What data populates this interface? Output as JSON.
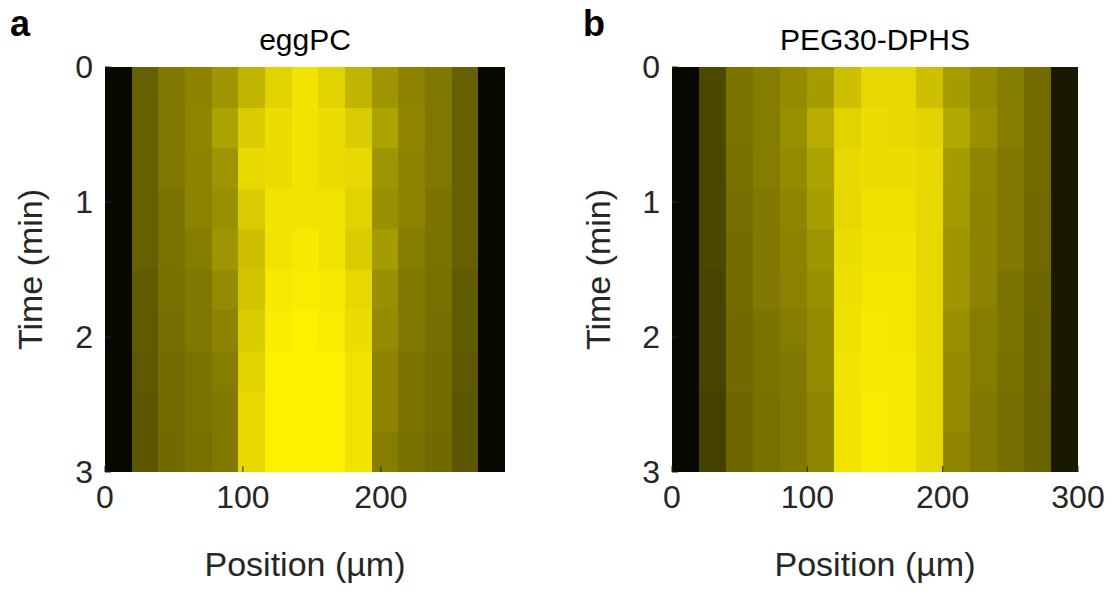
{
  "chart_data": [
    {
      "type": "heatmap",
      "panel_label": "a",
      "title": "eggPC",
      "x_label": "Position (µm)",
      "y_label": "Time (min)",
      "xlim": [
        0,
        290
      ],
      "ylim": [
        0,
        3
      ],
      "xticks": [
        0,
        100,
        200
      ],
      "yticks": [
        0,
        1,
        2,
        3
      ],
      "cells": [
        [
          0.03,
          0.4,
          0.5,
          0.55,
          0.62,
          0.75,
          0.88,
          0.95,
          0.88,
          0.75,
          0.62,
          0.55,
          0.5,
          0.4,
          0.03
        ],
        [
          0.03,
          0.4,
          0.5,
          0.56,
          0.68,
          0.85,
          0.92,
          0.95,
          0.92,
          0.85,
          0.68,
          0.56,
          0.5,
          0.4,
          0.03
        ],
        [
          0.03,
          0.4,
          0.5,
          0.55,
          0.62,
          0.9,
          0.92,
          0.95,
          0.92,
          0.9,
          0.62,
          0.55,
          0.5,
          0.4,
          0.03
        ],
        [
          0.03,
          0.4,
          0.48,
          0.55,
          0.6,
          0.85,
          0.95,
          0.95,
          0.95,
          0.88,
          0.6,
          0.55,
          0.48,
          0.4,
          0.03
        ],
        [
          0.03,
          0.4,
          0.48,
          0.52,
          0.62,
          0.8,
          0.95,
          0.97,
          0.95,
          0.85,
          0.65,
          0.52,
          0.48,
          0.4,
          0.03
        ],
        [
          0.03,
          0.38,
          0.47,
          0.5,
          0.58,
          0.82,
          0.97,
          0.98,
          0.97,
          0.9,
          0.6,
          0.5,
          0.47,
          0.38,
          0.03
        ],
        [
          0.03,
          0.38,
          0.46,
          0.5,
          0.55,
          0.85,
          0.98,
          1,
          0.98,
          0.92,
          0.58,
          0.5,
          0.46,
          0.38,
          0.03
        ],
        [
          0.03,
          0.37,
          0.45,
          0.48,
          0.52,
          0.88,
          1,
          1,
          1,
          0.95,
          0.55,
          0.48,
          0.45,
          0.37,
          0.03
        ],
        [
          0.03,
          0.36,
          0.45,
          0.48,
          0.5,
          0.9,
          1,
          1,
          1,
          0.95,
          0.55,
          0.48,
          0.45,
          0.36,
          0.03
        ],
        [
          0.03,
          0.36,
          0.44,
          0.47,
          0.5,
          0.9,
          1,
          1,
          1,
          0.95,
          0.52,
          0.47,
          0.44,
          0.36,
          0.03
        ]
      ]
    },
    {
      "type": "heatmap",
      "panel_label": "b",
      "title": "PEG30-DPHS",
      "x_label": "Position (µm)",
      "y_label": "Time (min)",
      "xlim": [
        0,
        300
      ],
      "ylim": [
        0,
        3
      ],
      "xticks": [
        0,
        100,
        200,
        300
      ],
      "yticks": [
        0,
        1,
        2,
        3
      ],
      "cells": [
        [
          0.03,
          0.3,
          0.48,
          0.52,
          0.58,
          0.65,
          0.8,
          0.9,
          0.9,
          0.8,
          0.65,
          0.58,
          0.52,
          0.45,
          0.1
        ],
        [
          0.03,
          0.3,
          0.48,
          0.52,
          0.6,
          0.72,
          0.88,
          0.92,
          0.9,
          0.88,
          0.7,
          0.6,
          0.52,
          0.45,
          0.1
        ],
        [
          0.03,
          0.3,
          0.47,
          0.52,
          0.58,
          0.68,
          0.9,
          0.92,
          0.92,
          0.9,
          0.65,
          0.56,
          0.5,
          0.45,
          0.1
        ],
        [
          0.03,
          0.3,
          0.46,
          0.5,
          0.56,
          0.66,
          0.9,
          0.94,
          0.94,
          0.9,
          0.64,
          0.55,
          0.5,
          0.44,
          0.1
        ],
        [
          0.03,
          0.3,
          0.45,
          0.5,
          0.55,
          0.62,
          0.92,
          0.95,
          0.95,
          0.9,
          0.62,
          0.55,
          0.5,
          0.44,
          0.1
        ],
        [
          0.03,
          0.28,
          0.45,
          0.5,
          0.54,
          0.6,
          0.93,
          0.96,
          0.96,
          0.9,
          0.62,
          0.54,
          0.48,
          0.43,
          0.1
        ],
        [
          0.03,
          0.28,
          0.44,
          0.48,
          0.52,
          0.58,
          0.94,
          0.97,
          0.96,
          0.9,
          0.6,
          0.52,
          0.48,
          0.42,
          0.1
        ],
        [
          0.03,
          0.28,
          0.44,
          0.48,
          0.5,
          0.58,
          0.95,
          0.97,
          0.97,
          0.9,
          0.58,
          0.52,
          0.47,
          0.42,
          0.1
        ],
        [
          0.03,
          0.27,
          0.43,
          0.47,
          0.5,
          0.56,
          0.95,
          0.98,
          0.97,
          0.9,
          0.58,
          0.5,
          0.46,
          0.41,
          0.1
        ],
        [
          0.03,
          0.27,
          0.43,
          0.47,
          0.5,
          0.56,
          0.95,
          0.98,
          0.97,
          0.9,
          0.56,
          0.5,
          0.46,
          0.41,
          0.1
        ]
      ]
    }
  ]
}
